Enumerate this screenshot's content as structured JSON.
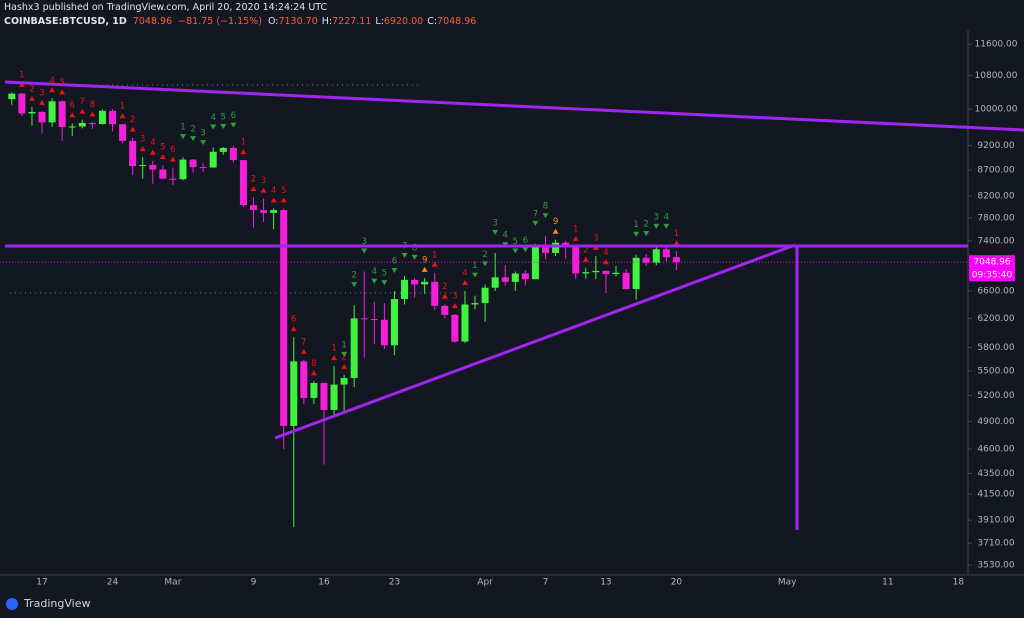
{
  "header": {
    "publisher_line": "Hashx3 published on TradingView.com, April 20, 2020 14:24:24 UTC",
    "symbol": "COINBASE:BTCUSD, 1D",
    "last": "7048.96",
    "change": "−81.75 (−1.15%)",
    "ohlc": [
      {
        "label": "O:",
        "value": "7130.70"
      },
      {
        "label": "H:",
        "value": "7227.11"
      },
      {
        "label": "L:",
        "value": "6920.00"
      },
      {
        "label": "C:",
        "value": "7048.96"
      }
    ]
  },
  "footer": {
    "logo": "TradingView"
  },
  "chart_data": {
    "type": "candlestick",
    "log_scale": true,
    "grid": false,
    "up_color": "#3ff23f",
    "down_color": "#f51fd9",
    "categories": [
      null,
      null,
      null,
      "17",
      null,
      null,
      null,
      null,
      null,
      null,
      "24",
      null,
      null,
      null,
      null,
      null,
      "Mar",
      null,
      null,
      null,
      null,
      null,
      null,
      null,
      "9",
      null,
      null,
      null,
      null,
      null,
      null,
      "16",
      null,
      null,
      null,
      null,
      null,
      null,
      "23",
      null,
      null,
      null,
      null,
      null,
      null,
      null,
      null,
      "Apr",
      null,
      null,
      null,
      null,
      null,
      "7",
      null,
      null,
      null,
      null,
      null,
      "13",
      null,
      null,
      null,
      null,
      null,
      null,
      "20",
      null,
      null,
      null,
      null,
      null,
      null,
      null,
      null,
      null,
      null,
      "May",
      null,
      null,
      null,
      null,
      null,
      null,
      null,
      null,
      null,
      "11",
      null,
      null,
      null,
      null,
      null,
      null,
      "18"
    ],
    "open": [
      10230,
      10360,
      9900,
      9935,
      9700,
      10180,
      9600,
      9610,
      9690,
      9665,
      9960,
      9660,
      9300,
      8780,
      8800,
      8710,
      8530,
      8520,
      8910,
      8760,
      8750,
      9070,
      9150,
      8900,
      8030,
      7940,
      7890,
      7940,
      4850,
      5620,
      5170,
      5350,
      5030,
      5330,
      5410,
      6200,
      6190,
      6180,
      5830,
      6480,
      6770,
      6700,
      6740,
      6380,
      6250,
      5880,
      6400,
      6420,
      6650,
      6810,
      6740,
      6870,
      6780,
      7340,
      7200,
      7370,
      7300,
      6870,
      6890,
      6910,
      6860,
      6880,
      6630,
      7120,
      7040,
      7260,
      7130,
      null,
      null,
      null,
      null,
      null,
      null,
      null,
      null,
      null,
      null,
      null,
      null,
      null,
      null,
      null,
      null,
      null,
      null,
      null,
      null,
      null,
      null,
      null,
      null,
      null,
      null,
      null,
      null
    ],
    "high": [
      10390,
      10380,
      10050,
      9960,
      10250,
      10200,
      9680,
      9760,
      9700,
      9990,
      10000,
      9660,
      9370,
      8960,
      8890,
      8800,
      8750,
      8960,
      8920,
      8840,
      9160,
      9170,
      9200,
      8900,
      8180,
      8150,
      7970,
      7970,
      5940,
      5640,
      5370,
      5350,
      5560,
      5450,
      6390,
      6900,
      6440,
      6420,
      6600,
      6830,
      6800,
      6800,
      6880,
      6400,
      6260,
      6600,
      6530,
      6700,
      7200,
      7000,
      6900,
      6920,
      7350,
      7480,
      7420,
      7400,
      7300,
      6960,
      7150,
      6920,
      6990,
      6940,
      7170,
      7180,
      7300,
      7300,
      7227.11,
      null,
      null,
      null,
      null,
      null,
      null,
      null,
      null,
      null,
      null,
      null,
      null,
      null,
      null,
      null,
      null,
      null,
      null,
      null,
      null,
      null,
      null,
      null,
      null,
      null,
      null,
      null,
      null
    ],
    "low": [
      10100,
      9850,
      9630,
      9460,
      9600,
      9300,
      9400,
      9570,
      9560,
      9650,
      9500,
      9250,
      8600,
      8530,
      8430,
      8530,
      8410,
      8500,
      8650,
      8660,
      8750,
      9010,
      8850,
      8000,
      7630,
      7730,
      7600,
      4600,
      3850,
      5100,
      5100,
      4440,
      4950,
      5000,
      5300,
      5670,
      5850,
      5780,
      5700,
      6400,
      6500,
      6560,
      6320,
      6200,
      5860,
      5860,
      6330,
      6150,
      6600,
      6680,
      6600,
      6680,
      6780,
      7100,
      7150,
      7110,
      6780,
      6790,
      6780,
      6570,
      6820,
      6620,
      6470,
      6990,
      7000,
      7050,
      6920,
      null,
      null,
      null,
      null,
      null,
      null,
      null,
      null,
      null,
      null,
      null,
      null,
      null,
      null,
      null,
      null,
      null,
      null,
      null,
      null,
      null,
      null,
      null,
      null,
      null,
      null,
      null,
      null
    ],
    "close": [
      10360,
      9900,
      9935,
      9700,
      10180,
      9600,
      9610,
      9690,
      9665,
      9960,
      9660,
      9300,
      8780,
      8800,
      8710,
      8530,
      8520,
      8910,
      8760,
      8750,
      9070,
      9150,
      8900,
      8030,
      7940,
      7890,
      7940,
      4850,
      5620,
      5170,
      5350,
      5030,
      5330,
      5410,
      6200,
      6190,
      6180,
      5830,
      6480,
      6770,
      6700,
      6740,
      6380,
      6250,
      5880,
      6400,
      6420,
      6650,
      6810,
      6740,
      6870,
      6780,
      7340,
      7200,
      7370,
      7300,
      6870,
      6890,
      6910,
      6860,
      6880,
      6630,
      7120,
      7040,
      7260,
      7130,
      7048.96,
      null,
      null,
      null,
      null,
      null,
      null,
      null,
      null,
      null,
      null,
      null,
      null,
      null,
      null,
      null,
      null,
      null,
      null,
      null,
      null,
      null,
      null,
      null,
      null,
      null,
      null,
      null,
      null
    ],
    "td_sell": {
      "color": "#f01010",
      "nine_color": "#ff8c1a",
      "values": [
        null,
        1,
        2,
        3,
        4,
        5,
        6,
        7,
        8,
        null,
        null,
        1,
        2,
        3,
        4,
        5,
        6,
        null,
        null,
        null,
        null,
        null,
        null,
        1,
        2,
        3,
        4,
        5,
        6,
        7,
        8,
        null,
        1,
        2,
        null,
        null,
        null,
        null,
        null,
        null,
        null,
        9,
        1,
        2,
        3,
        4,
        null,
        null,
        null,
        null,
        null,
        null,
        null,
        null,
        9,
        null,
        1,
        2,
        3,
        4,
        null,
        null,
        null,
        null,
        null,
        null,
        1,
        null,
        null,
        null,
        null,
        null,
        null,
        null,
        null,
        null,
        null,
        null,
        null,
        null,
        null,
        null,
        null,
        null,
        null,
        null,
        null,
        null,
        null,
        null,
        null,
        null,
        null,
        null,
        null
      ]
    },
    "td_buy": {
      "color": "#2e9e3e",
      "values": [
        null,
        null,
        null,
        null,
        null,
        null,
        null,
        null,
        null,
        null,
        null,
        null,
        null,
        null,
        null,
        null,
        null,
        1,
        2,
        3,
        4,
        5,
        6,
        null,
        null,
        null,
        null,
        null,
        null,
        null,
        null,
        null,
        null,
        1,
        2,
        3,
        4,
        5,
        6,
        7,
        8,
        null,
        null,
        null,
        null,
        null,
        1,
        2,
        3,
        4,
        5,
        6,
        7,
        8,
        null,
        null,
        null,
        null,
        null,
        null,
        null,
        null,
        1,
        2,
        3,
        4,
        null,
        null,
        null,
        null,
        null,
        null,
        null,
        null,
        null,
        null,
        null,
        null,
        null,
        null,
        null,
        null,
        null,
        null,
        null,
        null,
        null,
        null,
        null,
        null,
        null,
        null,
        null,
        null,
        null
      ]
    },
    "last_price": {
      "value": 7048.96,
      "countdown": "09:35:40",
      "color": "#ff00ff"
    },
    "ylim": [
      3450,
      11980
    ],
    "yticks": [
      {
        "value": 11600,
        "label": "11600.00"
      },
      {
        "value": 10800,
        "label": "10800.00"
      },
      {
        "value": 10000,
        "label": "10000.00"
      },
      {
        "value": 9200,
        "label": "9200.00"
      },
      {
        "value": 8700,
        "label": "8700.00"
      },
      {
        "value": 8200,
        "label": "8200.00"
      },
      {
        "value": 7800,
        "label": "7800.00"
      },
      {
        "value": 7400,
        "label": "7400.00"
      },
      {
        "value": 6600,
        "label": "6600.00"
      },
      {
        "value": 6200,
        "label": "6200.00"
      },
      {
        "value": 5800,
        "label": "5800.00"
      },
      {
        "value": 5500,
        "label": "5500.00"
      },
      {
        "value": 5200,
        "label": "5200.00"
      },
      {
        "value": 4900,
        "label": "4900.00"
      },
      {
        "value": 4600,
        "label": "4600.00"
      },
      {
        "value": 4350,
        "label": "4350.00"
      },
      {
        "value": 4150,
        "label": "4150.00"
      },
      {
        "value": 3910,
        "label": "3910.00"
      },
      {
        "value": 3710,
        "label": "3710.00"
      },
      {
        "value": 3530,
        "label": "3530.00"
      }
    ]
  }
}
